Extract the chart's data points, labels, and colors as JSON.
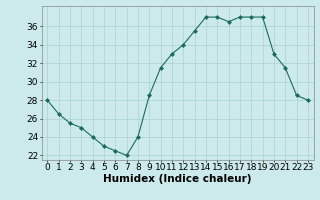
{
  "x": [
    0,
    1,
    2,
    3,
    4,
    5,
    6,
    7,
    8,
    9,
    10,
    11,
    12,
    13,
    14,
    15,
    16,
    17,
    18,
    19,
    20,
    21,
    22,
    23
  ],
  "y": [
    28,
    26.5,
    25.5,
    25,
    24,
    23,
    22.5,
    22,
    24,
    28.5,
    31.5,
    33,
    34,
    35.5,
    37,
    37,
    36.5,
    37,
    37,
    37,
    33,
    31.5,
    28.5,
    28
  ],
  "line_color": "#1a6b5a",
  "marker": "D",
  "marker_size": 2.0,
  "background_color": "#cceaec",
  "grid_color": "#b0d4d6",
  "xlabel": "Humidex (Indice chaleur)",
  "xlabel_fontsize": 7.5,
  "ylim": [
    21.5,
    38.2
  ],
  "xlim": [
    -0.5,
    23.5
  ],
  "yticks": [
    22,
    24,
    26,
    28,
    30,
    32,
    34,
    36
  ],
  "xticks": [
    0,
    1,
    2,
    3,
    4,
    5,
    6,
    7,
    8,
    9,
    10,
    11,
    12,
    13,
    14,
    15,
    16,
    17,
    18,
    19,
    20,
    21,
    22,
    23
  ],
  "tick_fontsize": 6.5
}
